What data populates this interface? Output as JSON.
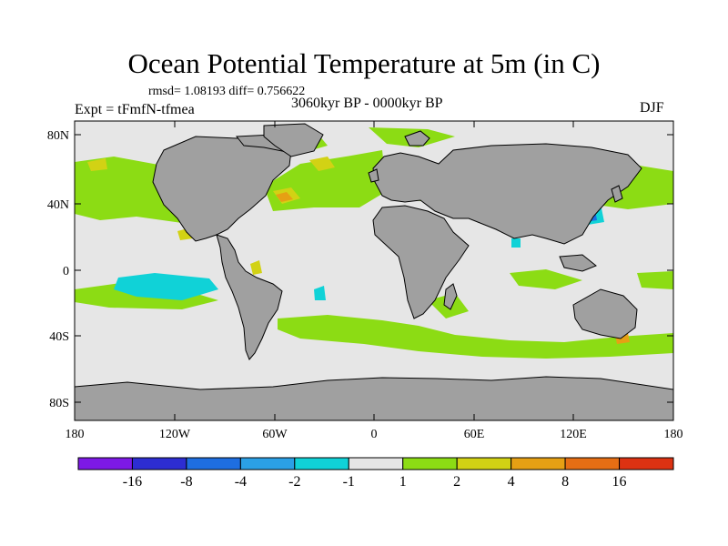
{
  "title": "Ocean Potential Temperature at 5m (in C)",
  "stats": "rmsd= 1.08193 diff= 0.756622",
  "experiment": "Expt = tFmfN-tfmea",
  "period": "3060kyr BP - 0000kyr BP",
  "season": "DJF",
  "axes": {
    "lat_ticks": [
      "80N",
      "40N",
      "0",
      "40S",
      "80S"
    ],
    "lon_ticks": [
      "180",
      "120W",
      "60W",
      "0",
      "60E",
      "120E",
      "180"
    ]
  },
  "colorbar": {
    "colors": [
      "#7d19e6",
      "#2d2dd2",
      "#1e6ee1",
      "#2ba0e6",
      "#10d2d7",
      "#e6e6e6",
      "#8cdc14",
      "#d2d214",
      "#e6a014",
      "#e66e14",
      "#dc3212"
    ],
    "labels": [
      "-16",
      "-8",
      "-4",
      "-2",
      "-1",
      "1",
      "2",
      "4",
      "8",
      "16"
    ]
  },
  "palette": {
    "land": "#a0a0a0",
    "ocean_neutral": "#e6e6e6",
    "warm_1_2": "#8cdc14",
    "warm_2_4": "#d2d214",
    "warm_4_8": "#e6a014",
    "cool_1_2": "#10d2d7",
    "cool_2_4": "#2ba0e6",
    "cool_4_8": "#1e6ee1"
  }
}
